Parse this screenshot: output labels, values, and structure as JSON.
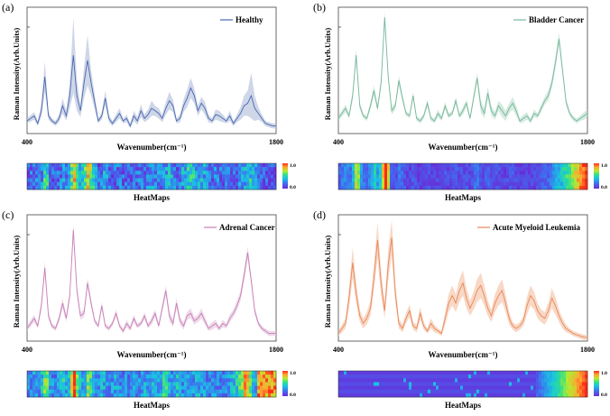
{
  "panels": [
    {
      "panel_label": "(a)",
      "legend": "Healthy",
      "color": "#4a67b0",
      "band_color": "#aebad9",
      "band_opacity": 0.6,
      "ylabel": "Raman Intensity(Arb.Units)",
      "xlabel": "Wavenumber(cm⁻¹)",
      "x_min_label": "400",
      "x_max_label": "1800",
      "heatmap_title": "HeatMaps",
      "cbar_max": "1.0",
      "cbar_min": "0.0",
      "heatmap_style": "varied"
    },
    {
      "panel_label": "(b)",
      "legend": "Bladder Cancer",
      "color": "#76b89a",
      "band_color": "#b9dccc",
      "band_opacity": 0.6,
      "ylabel": "Raman Intensity(Arb.Units)",
      "xlabel": "Wavenumber(cm⁻¹)",
      "x_min_label": "400",
      "x_max_label": "1800",
      "heatmap_title": "HeatMaps",
      "cbar_max": "1.0",
      "cbar_min": "0.0",
      "heatmap_style": "purple_left"
    },
    {
      "panel_label": "(c)",
      "legend": "Adrenal Cancer",
      "color": "#c77fb6",
      "band_color": "#e5c2dc",
      "band_opacity": 0.6,
      "ylabel": "Raman Intensity(Arb.Units)",
      "xlabel": "Wavenumber(cm⁻¹)",
      "x_min_label": "400",
      "x_max_label": "1800",
      "heatmap_title": "HeatMaps",
      "cbar_max": "1.0",
      "cbar_min": "0.0",
      "heatmap_style": "mixed"
    },
    {
      "panel_label": "(d)",
      "legend": "Acute Myeloid Leukemia",
      "color": "#e98758",
      "band_color": "#f5c3a7",
      "band_opacity": 0.65,
      "ylabel": "Raman Intensity(Arb.Units)",
      "xlabel": "Wavenumber(cm⁻¹)",
      "x_min_label": "400",
      "x_max_label": "1800",
      "heatmap_title": "HeatMaps",
      "cbar_max": "1.0",
      "cbar_min": "0.0",
      "heatmap_style": "purple_stripes"
    }
  ],
  "chart_data": [
    {
      "type": "line",
      "title": "Healthy",
      "xlabel": "Wavenumber(cm⁻¹)",
      "ylabel": "Raman Intensity(Arb.Units)",
      "xlim": [
        400,
        1800
      ],
      "ylim": [
        0,
        1
      ],
      "series": [
        {
          "name": "Healthy",
          "x": [
            400,
            440,
            460,
            480,
            500,
            520,
            540,
            560,
            580,
            600,
            620,
            640,
            660,
            680,
            700,
            720,
            740,
            760,
            780,
            800,
            820,
            840,
            860,
            880,
            900,
            920,
            940,
            960,
            980,
            1000,
            1020,
            1040,
            1060,
            1080,
            1100,
            1120,
            1140,
            1160,
            1180,
            1200,
            1220,
            1240,
            1260,
            1280,
            1300,
            1320,
            1340,
            1360,
            1380,
            1400,
            1420,
            1440,
            1460,
            1480,
            1500,
            1520,
            1540,
            1560,
            1580,
            1600,
            1620,
            1640,
            1660,
            1680,
            1700,
            1720,
            1740,
            1760,
            1780,
            1800
          ],
          "values": [
            0.1,
            0.14,
            0.08,
            0.18,
            0.45,
            0.14,
            0.1,
            0.08,
            0.12,
            0.22,
            0.14,
            0.3,
            0.62,
            0.3,
            0.18,
            0.4,
            0.58,
            0.4,
            0.25,
            0.1,
            0.14,
            0.28,
            0.12,
            0.08,
            0.12,
            0.16,
            0.1,
            0.12,
            0.06,
            0.14,
            0.1,
            0.18,
            0.12,
            0.15,
            0.2,
            0.18,
            0.16,
            0.12,
            0.2,
            0.26,
            0.22,
            0.1,
            0.12,
            0.22,
            0.28,
            0.36,
            0.3,
            0.18,
            0.24,
            0.2,
            0.12,
            0.1,
            0.15,
            0.14,
            0.12,
            0.1,
            0.14,
            0.08,
            0.12,
            0.16,
            0.22,
            0.24,
            0.3,
            0.2,
            0.16,
            0.12,
            0.08,
            0.07,
            0.06,
            0.06
          ],
          "spread": [
            0.02,
            0.03,
            0.02,
            0.05,
            0.12,
            0.03,
            0.02,
            0.02,
            0.03,
            0.06,
            0.04,
            0.1,
            0.3,
            0.12,
            0.05,
            0.12,
            0.2,
            0.1,
            0.06,
            0.02,
            0.03,
            0.06,
            0.03,
            0.02,
            0.03,
            0.04,
            0.02,
            0.03,
            0.02,
            0.04,
            0.03,
            0.05,
            0.03,
            0.04,
            0.06,
            0.04,
            0.04,
            0.03,
            0.05,
            0.07,
            0.05,
            0.02,
            0.03,
            0.05,
            0.07,
            0.08,
            0.06,
            0.04,
            0.05,
            0.05,
            0.03,
            0.02,
            0.04,
            0.04,
            0.03,
            0.02,
            0.04,
            0.02,
            0.03,
            0.05,
            0.08,
            0.1,
            0.18,
            0.1,
            0.05,
            0.03,
            0.02,
            0.02,
            0.02,
            0.02
          ]
        }
      ]
    },
    {
      "type": "line",
      "title": "Bladder Cancer",
      "xlabel": "Wavenumber(cm⁻¹)",
      "ylabel": "Raman Intensity(Arb.Units)",
      "xlim": [
        400,
        1800
      ],
      "ylim": [
        0,
        1
      ],
      "series": [
        {
          "name": "Bladder Cancer",
          "x": [
            400,
            440,
            460,
            480,
            500,
            520,
            540,
            560,
            580,
            600,
            620,
            640,
            660,
            680,
            700,
            720,
            740,
            760,
            780,
            800,
            820,
            840,
            860,
            880,
            900,
            920,
            940,
            960,
            980,
            1000,
            1020,
            1040,
            1060,
            1080,
            1100,
            1120,
            1140,
            1160,
            1180,
            1200,
            1220,
            1240,
            1260,
            1280,
            1300,
            1320,
            1340,
            1360,
            1380,
            1400,
            1420,
            1440,
            1460,
            1480,
            1500,
            1520,
            1540,
            1560,
            1580,
            1600,
            1620,
            1640,
            1660,
            1680,
            1700,
            1720,
            1740,
            1760,
            1780,
            1800
          ],
          "values": [
            0.12,
            0.2,
            0.14,
            0.3,
            0.62,
            0.22,
            0.14,
            0.12,
            0.22,
            0.34,
            0.2,
            0.4,
            0.92,
            0.45,
            0.18,
            0.22,
            0.42,
            0.28,
            0.16,
            0.14,
            0.3,
            0.12,
            0.1,
            0.14,
            0.24,
            0.12,
            0.1,
            0.16,
            0.12,
            0.22,
            0.14,
            0.16,
            0.26,
            0.14,
            0.18,
            0.24,
            0.12,
            0.28,
            0.44,
            0.22,
            0.16,
            0.32,
            0.18,
            0.14,
            0.22,
            0.18,
            0.14,
            0.2,
            0.24,
            0.18,
            0.1,
            0.12,
            0.14,
            0.1,
            0.16,
            0.14,
            0.2,
            0.26,
            0.3,
            0.4,
            0.56,
            0.75,
            0.5,
            0.25,
            0.16,
            0.12,
            0.1,
            0.12,
            0.14,
            0.16
          ],
          "spread": [
            0.02,
            0.03,
            0.02,
            0.04,
            0.05,
            0.03,
            0.02,
            0.02,
            0.03,
            0.04,
            0.03,
            0.04,
            0.05,
            0.04,
            0.03,
            0.03,
            0.04,
            0.03,
            0.02,
            0.02,
            0.03,
            0.02,
            0.02,
            0.02,
            0.03,
            0.02,
            0.02,
            0.03,
            0.02,
            0.03,
            0.02,
            0.02,
            0.03,
            0.02,
            0.03,
            0.03,
            0.02,
            0.03,
            0.04,
            0.05,
            0.04,
            0.05,
            0.04,
            0.03,
            0.04,
            0.05,
            0.04,
            0.04,
            0.05,
            0.04,
            0.02,
            0.03,
            0.03,
            0.02,
            0.03,
            0.02,
            0.03,
            0.03,
            0.04,
            0.04,
            0.05,
            0.05,
            0.04,
            0.03,
            0.02,
            0.02,
            0.02,
            0.02,
            0.03,
            0.03
          ]
        }
      ]
    },
    {
      "type": "line",
      "title": "Adrenal Cancer",
      "xlabel": "Wavenumber(cm⁻¹)",
      "ylabel": "Raman Intensity(Arb.Units)",
      "xlim": [
        400,
        1800
      ],
      "ylim": [
        0,
        1
      ],
      "series": [
        {
          "name": "Adrenal Cancer",
          "x": [
            400,
            440,
            460,
            480,
            500,
            520,
            540,
            560,
            580,
            600,
            620,
            640,
            660,
            680,
            700,
            720,
            740,
            760,
            780,
            800,
            820,
            840,
            860,
            880,
            900,
            920,
            940,
            960,
            980,
            1000,
            1020,
            1040,
            1060,
            1080,
            1100,
            1120,
            1140,
            1160,
            1180,
            1200,
            1220,
            1240,
            1260,
            1280,
            1300,
            1320,
            1340,
            1360,
            1380,
            1400,
            1420,
            1440,
            1460,
            1480,
            1500,
            1520,
            1540,
            1560,
            1580,
            1600,
            1620,
            1640,
            1660,
            1680,
            1700,
            1720,
            1740,
            1760,
            1780,
            1800
          ],
          "values": [
            0.1,
            0.18,
            0.12,
            0.28,
            0.58,
            0.2,
            0.12,
            0.1,
            0.18,
            0.3,
            0.18,
            0.36,
            0.88,
            0.4,
            0.2,
            0.22,
            0.46,
            0.3,
            0.16,
            0.12,
            0.28,
            0.12,
            0.1,
            0.14,
            0.22,
            0.12,
            0.08,
            0.14,
            0.1,
            0.18,
            0.12,
            0.14,
            0.2,
            0.12,
            0.16,
            0.22,
            0.12,
            0.26,
            0.4,
            0.2,
            0.14,
            0.3,
            0.16,
            0.12,
            0.2,
            0.22,
            0.16,
            0.18,
            0.22,
            0.16,
            0.1,
            0.12,
            0.14,
            0.1,
            0.14,
            0.12,
            0.18,
            0.22,
            0.28,
            0.36,
            0.52,
            0.7,
            0.48,
            0.24,
            0.14,
            0.1,
            0.08,
            0.06,
            0.06,
            0.06
          ],
          "spread": [
            0.02,
            0.03,
            0.02,
            0.04,
            0.05,
            0.03,
            0.02,
            0.02,
            0.03,
            0.04,
            0.03,
            0.04,
            0.05,
            0.04,
            0.03,
            0.03,
            0.04,
            0.03,
            0.02,
            0.02,
            0.03,
            0.02,
            0.02,
            0.02,
            0.03,
            0.02,
            0.02,
            0.03,
            0.02,
            0.03,
            0.02,
            0.02,
            0.03,
            0.02,
            0.03,
            0.03,
            0.02,
            0.03,
            0.04,
            0.04,
            0.03,
            0.04,
            0.03,
            0.03,
            0.03,
            0.04,
            0.03,
            0.03,
            0.04,
            0.03,
            0.02,
            0.03,
            0.03,
            0.02,
            0.03,
            0.02,
            0.03,
            0.03,
            0.04,
            0.04,
            0.05,
            0.05,
            0.04,
            0.03,
            0.02,
            0.02,
            0.02,
            0.02,
            0.02,
            0.02
          ]
        }
      ]
    },
    {
      "type": "line",
      "title": "Acute Myeloid Leukemia",
      "xlabel": "Wavenumber(cm⁻¹)",
      "ylabel": "Raman Intensity(Arb.Units)",
      "xlim": [
        400,
        1800
      ],
      "ylim": [
        0,
        1
      ],
      "series": [
        {
          "name": "Acute Myeloid Leukemia",
          "x": [
            400,
            440,
            460,
            480,
            500,
            520,
            540,
            560,
            580,
            600,
            620,
            640,
            660,
            680,
            700,
            720,
            740,
            760,
            780,
            800,
            820,
            840,
            860,
            880,
            900,
            920,
            940,
            960,
            980,
            1000,
            1020,
            1040,
            1060,
            1080,
            1100,
            1120,
            1140,
            1160,
            1180,
            1200,
            1220,
            1240,
            1260,
            1280,
            1300,
            1320,
            1340,
            1360,
            1380,
            1400,
            1420,
            1440,
            1460,
            1480,
            1500,
            1520,
            1540,
            1560,
            1580,
            1600,
            1620,
            1640,
            1660,
            1680,
            1700,
            1720,
            1740,
            1760,
            1780,
            1800
          ],
          "values": [
            0.06,
            0.14,
            0.34,
            0.62,
            0.38,
            0.2,
            0.14,
            0.18,
            0.26,
            0.5,
            0.8,
            0.46,
            0.24,
            0.6,
            0.82,
            0.38,
            0.14,
            0.1,
            0.18,
            0.24,
            0.12,
            0.1,
            0.22,
            0.12,
            0.08,
            0.14,
            0.1,
            0.08,
            0.06,
            0.18,
            0.3,
            0.36,
            0.3,
            0.4,
            0.46,
            0.34,
            0.26,
            0.32,
            0.4,
            0.44,
            0.36,
            0.26,
            0.2,
            0.3,
            0.36,
            0.4,
            0.3,
            0.18,
            0.12,
            0.1,
            0.12,
            0.16,
            0.28,
            0.36,
            0.32,
            0.24,
            0.2,
            0.18,
            0.24,
            0.34,
            0.28,
            0.2,
            0.14,
            0.1,
            0.08,
            0.06,
            0.05,
            0.04,
            0.03,
            0.03
          ],
          "spread": [
            0.02,
            0.04,
            0.08,
            0.12,
            0.08,
            0.05,
            0.04,
            0.05,
            0.06,
            0.1,
            0.14,
            0.1,
            0.06,
            0.12,
            0.14,
            0.08,
            0.04,
            0.03,
            0.04,
            0.05,
            0.03,
            0.03,
            0.05,
            0.03,
            0.02,
            0.04,
            0.03,
            0.02,
            0.02,
            0.05,
            0.07,
            0.08,
            0.07,
            0.09,
            0.1,
            0.08,
            0.06,
            0.07,
            0.09,
            0.1,
            0.08,
            0.06,
            0.05,
            0.07,
            0.08,
            0.09,
            0.07,
            0.05,
            0.03,
            0.03,
            0.03,
            0.04,
            0.07,
            0.08,
            0.07,
            0.06,
            0.05,
            0.05,
            0.06,
            0.08,
            0.07,
            0.05,
            0.04,
            0.03,
            0.02,
            0.02,
            0.02,
            0.02,
            0.02,
            0.02
          ]
        }
      ]
    }
  ]
}
